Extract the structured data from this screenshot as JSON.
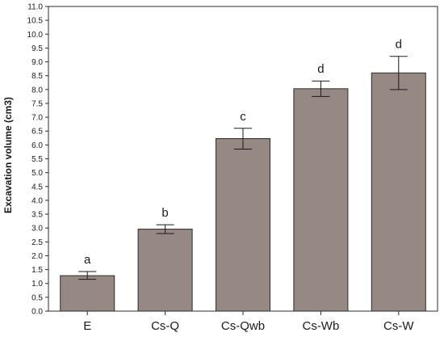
{
  "chart_data": {
    "type": "bar",
    "ylabel": "Excavation volume (cm3)",
    "xlabel": "",
    "ylim": [
      0,
      11
    ],
    "ytick_step": 0.5,
    "ytick_labels": [
      "0.0",
      "0.5",
      "1.0",
      "1.5",
      "2.0",
      "2.5",
      "3.0",
      "3.5",
      "4.0",
      "4.5",
      "5.0",
      "5.5",
      "6.0",
      "6.5",
      "7.0",
      "7.5",
      "8.0",
      "8.5",
      "9.0",
      "9.5",
      "10.0",
      "10.5",
      "11.0"
    ],
    "categories": [
      "E",
      "Cs-Q",
      "Cs-Qwb",
      "Cs-Wb",
      "Cs-W"
    ],
    "values": [
      1.28,
      2.96,
      6.23,
      8.03,
      8.6
    ],
    "error_low": [
      1.15,
      2.8,
      5.85,
      7.75,
      8.0
    ],
    "error_high": [
      1.43,
      3.12,
      6.6,
      8.31,
      9.2
    ],
    "letters": [
      "a",
      "b",
      "c",
      "d",
      "d"
    ],
    "grid": false,
    "bar_color": "#968883",
    "bar_edge_color": "#2b2b2b"
  }
}
